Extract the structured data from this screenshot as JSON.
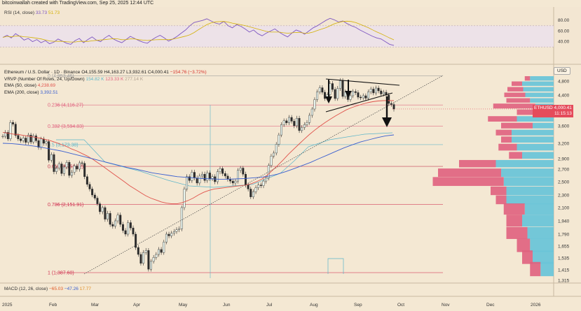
{
  "header": {
    "credit": "bitcoinwallah created with TradingView.com, Sep 25, 2025 12:44 UTC"
  },
  "rsi": {
    "label": "RSI (14, close)",
    "value1": "33.73",
    "value2": "51.73",
    "ticks": [
      "80.00",
      "60.00",
      "40.00"
    ],
    "tick_values": [
      80,
      60,
      40
    ],
    "series": [
      48,
      52,
      47,
      55,
      50,
      43,
      46,
      40,
      44,
      38,
      42,
      36,
      39,
      45,
      41,
      37,
      35,
      42,
      46,
      38,
      44,
      49,
      43,
      40,
      47,
      52,
      45,
      41,
      38,
      44,
      50,
      46,
      42,
      39,
      37,
      43,
      48,
      52,
      47,
      41,
      45,
      50,
      56,
      62,
      70,
      76,
      78,
      80,
      83,
      79,
      75,
      73,
      78,
      70,
      66,
      72,
      69,
      64,
      58,
      62,
      55,
      51,
      56,
      60,
      64,
      58,
      53,
      49,
      56,
      62,
      59,
      54,
      60,
      66,
      70,
      75,
      80,
      84,
      81,
      77,
      79,
      74,
      70,
      67,
      62,
      58,
      54,
      50,
      47,
      45,
      40,
      35,
      33
    ],
    "colors": {
      "line": "#7e57c2",
      "ma": "#d4b106",
      "band": "#ece1ea"
    }
  },
  "legend": {
    "title": "Ethereum / U.S. Dollar · 1D · Binance",
    "ohlc": "O4,155.59 H4,163.27 L3,932.61 C4,000.41",
    "change": "−154.76 (−3.72%)",
    "vrvp_label": "VRVP (Number Of Rows, 24, Up/Down)",
    "vrvp_values": [
      "154.82 K",
      "123.33 K",
      "277.14 K"
    ],
    "ema50_label": "EMA (50, close)",
    "ema50_value": "4,238.69",
    "ema200_label": "EMA (200, close)",
    "ema200_value": "3,392.51"
  },
  "macd": {
    "label": "MACD (12, 26, close)",
    "v1": "−65.03",
    "v2": "−47.26",
    "v3": "17.77"
  },
  "currency_button": "USD",
  "price_tag": {
    "symbol": "ETHUSD",
    "price": "4,000.41",
    "countdown": "11:15:13"
  },
  "chart_data": {
    "type": "line",
    "symbol": "ETHUSD",
    "timeframe": "1D",
    "x_axis_labels": [
      "2025",
      "Feb",
      "Mar",
      "Apr",
      "May",
      "Jun",
      "Jul",
      "Aug",
      "Sep",
      "Oct",
      "Nov",
      "Dec",
      "2026"
    ],
    "y_axis_ticks": [
      4800,
      4400,
      4000,
      3600,
      3200,
      2900,
      2700,
      2500,
      2300,
      2100,
      1940,
      1790,
      1655,
      1535,
      1415,
      1315
    ],
    "y_axis_labels": [
      "4,800",
      "4,400",
      "4,000",
      "3,600",
      "3,200",
      "2,900",
      "2,700",
      "2,500",
      "2,300",
      "2,100",
      "1,940",
      "1,790",
      "1,655",
      "1,535",
      "1,415",
      "1,315"
    ],
    "ylim": [
      1315,
      4950
    ],
    "fib_levels": [
      {
        "ratio": "0",
        "price": 4953.46,
        "label": "0 (4,953.46)",
        "color": "#9a9a9a"
      },
      {
        "ratio": "0.236",
        "price": 4116.27,
        "label": "0.236 (4,116.27)",
        "color": "#e0607e"
      },
      {
        "ratio": "0.382",
        "price": 3594.83,
        "label": "0.382 (3,594.83)",
        "color": "#e0607e"
      },
      {
        "ratio": "0.5",
        "price": 3173.38,
        "label": "0.5 (3,173.38)",
        "color": "#5bb5c9"
      },
      {
        "ratio": "0.618",
        "price": 2751.92,
        "label": "0.618 (2,751.92)",
        "color": "#c0304a"
      },
      {
        "ratio": "0.786",
        "price": 2151.91,
        "label": "0.786 (2,151.91)",
        "color": "#d03050"
      },
      {
        "ratio": "1",
        "price": 1387.6,
        "label": "1 (1,387.60)",
        "color": "#d03050"
      }
    ],
    "series": [
      {
        "name": "ETHUSD",
        "values": [
          3360,
          3450,
          3300,
          3680,
          3640,
          3380,
          3300,
          3260,
          3320,
          3220,
          3390,
          3230,
          3370,
          3260,
          3120,
          3300,
          3200,
          3240,
          2870,
          2980,
          2660,
          2720,
          2800,
          2630,
          2740,
          2830,
          2600,
          2650,
          2760,
          2700,
          2820,
          2810,
          2580,
          2460,
          2390,
          2300,
          2250,
          2160,
          2050,
          2100,
          1960,
          2030,
          1900,
          1880,
          1940,
          2010,
          1900,
          1830,
          1790,
          1920,
          1860,
          1790,
          1640,
          1570,
          1480,
          1590,
          1610,
          1420,
          1500,
          1540,
          1570,
          1620,
          1590,
          1700,
          1790,
          1770,
          1800,
          1820,
          1840,
          1850,
          2100,
          2390,
          2580,
          2520,
          2650,
          2560,
          2480,
          2590,
          2620,
          2520,
          2640,
          2550,
          2580,
          2500,
          2660,
          2710,
          2630,
          2590,
          2540,
          2510,
          2480,
          2510,
          2680,
          2720,
          2620,
          2450,
          2390,
          2270,
          2350,
          2410,
          2450,
          2440,
          2510,
          2560,
          2770,
          2950,
          3010,
          3180,
          3390,
          3630,
          3720,
          3670,
          3800,
          3710,
          3600,
          3780,
          3490,
          3560,
          3630,
          3680,
          3850,
          4000,
          4270,
          4490,
          4610,
          4480,
          4300,
          4410,
          4730,
          4560,
          4300,
          4590,
          4810,
          4360,
          4490,
          4270,
          4380,
          4500,
          4470,
          4340,
          4320,
          4380,
          4310,
          4490,
          4570,
          4460,
          4600,
          4520,
          4430,
          4480,
          4400,
          4160,
          4130,
          4000
        ],
        "color": "#26a69a"
      },
      {
        "name": "EMA (50, close)",
        "values": [
          3450,
          3430,
          3410,
          3400,
          3380,
          3360,
          3340,
          3320,
          3290,
          3260,
          3220,
          3180,
          3140,
          3090,
          3050,
          3000,
          2950,
          2890,
          2820,
          2750,
          2680,
          2620,
          2560,
          2500,
          2440,
          2390,
          2340,
          2290,
          2250,
          2220,
          2190,
          2170,
          2160,
          2160,
          2180,
          2210,
          2250,
          2300,
          2340,
          2370,
          2390,
          2400,
          2410,
          2420,
          2430,
          2440,
          2450,
          2470,
          2500,
          2540,
          2600,
          2680,
          2770,
          2870,
          2980,
          3080,
          3180,
          3290,
          3400,
          3500,
          3590,
          3680,
          3760,
          3840,
          3910,
          3980,
          4040,
          4090,
          4140,
          4180,
          4210,
          4230,
          4240,
          4245,
          4240
        ],
        "color": "#e0524b"
      },
      {
        "name": "EMA (200, close)",
        "values": [
          3200,
          3195,
          3180,
          3160,
          3140,
          3110,
          3080,
          3050,
          3010,
          2970,
          2930,
          2890,
          2850,
          2810,
          2770,
          2730,
          2700,
          2670,
          2640,
          2620,
          2600,
          2580,
          2570,
          2560,
          2550,
          2545,
          2540,
          2540,
          2545,
          2550,
          2560,
          2570,
          2590,
          2620,
          2660,
          2710,
          2770,
          2830,
          2900,
          2970,
          3040,
          3110,
          3170,
          3230,
          3280,
          3330,
          3370,
          3392
        ],
        "color": "#3a5fd0"
      }
    ],
    "volume_profile": {
      "up_color": "#6cc5d8",
      "down_color": "#e0607e"
    },
    "annotations": [
      "descending triangle pattern",
      "bearish breakdown arrows"
    ]
  }
}
